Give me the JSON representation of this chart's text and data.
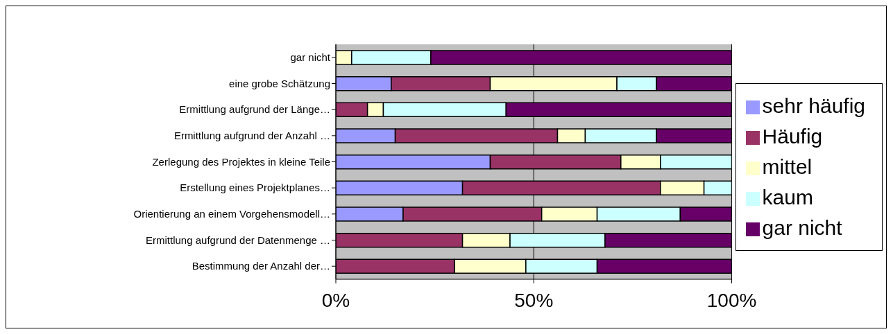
{
  "chart_data": {
    "type": "bar",
    "orientation": "horizontal",
    "stacked": true,
    "categories": [
      "gar nicht",
      "eine grobe Schätzung",
      "Ermittlung aufgrund der Länge…",
      "Ermittlung aufgrund der Anzahl …",
      "Zerlegung des Projektes in kleine Teile",
      "Erstellung eines Projektplanes…",
      "Orientierung an einem Vorgehensmodell…",
      "Ermittlung aufgrund der Datenmenge …",
      "Bestimmung der Anzahl der…"
    ],
    "series": [
      {
        "name": "sehr häufig",
        "color": "#9999ff",
        "values": [
          0,
          14,
          0,
          15,
          39,
          32,
          17,
          0,
          0
        ]
      },
      {
        "name": "Häufig",
        "color": "#993366",
        "values": [
          0,
          25,
          8,
          41,
          33,
          50,
          35,
          32,
          30
        ]
      },
      {
        "name": "mittel",
        "color": "#ffffcc",
        "values": [
          4,
          32,
          4,
          7,
          10,
          11,
          14,
          12,
          18
        ]
      },
      {
        "name": "kaum",
        "color": "#ccffff",
        "values": [
          20,
          10,
          31,
          18,
          18,
          7,
          21,
          24,
          18
        ]
      },
      {
        "name": "gar nicht",
        "color": "#660066",
        "values": [
          76,
          19,
          57,
          19,
          0,
          0,
          13,
          32,
          34
        ]
      }
    ],
    "xlim": [
      0,
      100
    ],
    "xticks": [
      {
        "value": 0,
        "label": "0%"
      },
      {
        "value": 50,
        "label": "50%"
      },
      {
        "value": 100,
        "label": "100%"
      }
    ],
    "grid": "x",
    "legend": "right"
  }
}
